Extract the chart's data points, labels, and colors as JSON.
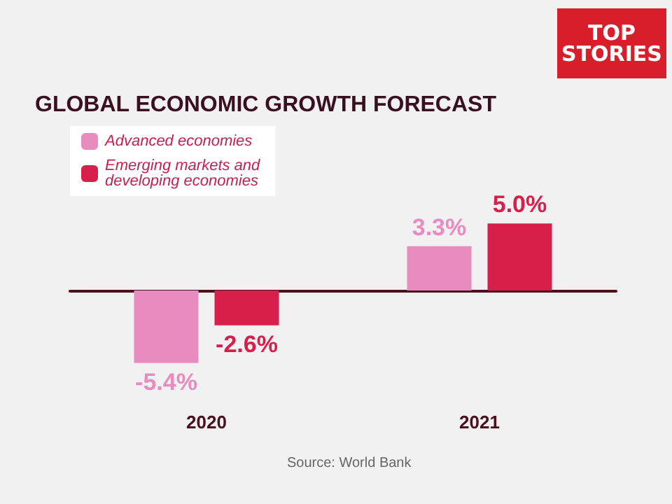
{
  "chart_data": {
    "type": "bar",
    "title": "GLOBAL ECONOMIC GROWTH FORECAST",
    "categories": [
      "2020",
      "2021"
    ],
    "series": [
      {
        "name": "Advanced economies",
        "color": "#e88cc0",
        "values": [
          -5.4,
          3.3
        ],
        "value_labels": [
          "-5.4%",
          "3.3%"
        ]
      },
      {
        "name": "Emerging markets and developing economies",
        "color": "#d81e4a",
        "values": [
          -2.6,
          5.0
        ],
        "value_labels": [
          "-2.6%",
          "5.0%"
        ]
      }
    ],
    "legend": "top left",
    "grid": false,
    "annotations": [
      "TOP STORIES",
      "Source: World Bank"
    ]
  }
}
